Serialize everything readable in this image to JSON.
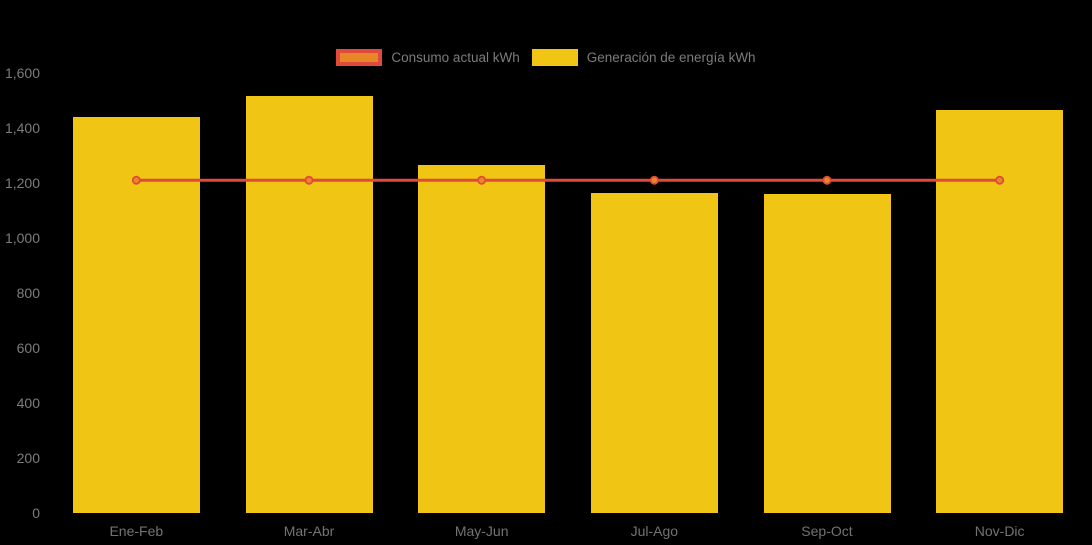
{
  "chart_data": {
    "type": "bar",
    "subtype": "bar-and-line-combo",
    "title": "",
    "categories": [
      "Ene-Feb",
      "Mar-Abr",
      "May-Jun",
      "Jul-Ago",
      "Sep-Oct",
      "Nov-Dic"
    ],
    "series": [
      {
        "name": "Consumo actual kWh",
        "type": "line",
        "color": "#e04a3a",
        "marker_fill": "#e8862a",
        "values": [
          1210,
          1210,
          1210,
          1210,
          1210,
          1210
        ]
      },
      {
        "name": "Generación de energía kWh",
        "type": "bar",
        "color": "#f0c514",
        "values": [
          1440,
          1515,
          1265,
          1165,
          1160,
          1465
        ]
      }
    ],
    "xlabel": "",
    "ylabel": "",
    "ylim": [
      0,
      1600
    ],
    "ytick_step": 200,
    "yticks": [
      "0",
      "200",
      "400",
      "600",
      "800",
      "1,000",
      "1,200",
      "1,400",
      "1,600"
    ],
    "grid": false,
    "legend_position": "top-center",
    "background_color": "#000000",
    "text_color": "#7c7c7c"
  }
}
